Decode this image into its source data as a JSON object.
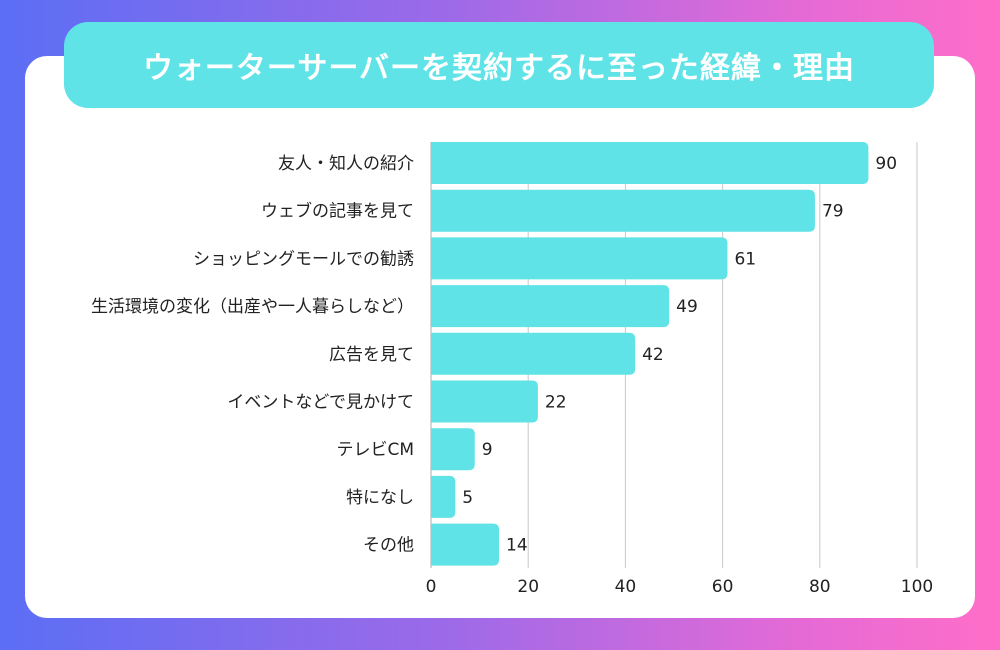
{
  "title": "ウォーターサーバーを契約するに至った経緯・理由",
  "colors": {
    "bar": "#5fe3e7",
    "banner": "#5fe3e7",
    "grid": "#c8c8c8",
    "text": "#222222"
  },
  "chart_data": {
    "type": "bar",
    "orientation": "horizontal",
    "title": "ウォーターサーバーを契約するに至った経緯・理由",
    "categories": [
      "友人・知人の紹介",
      "ウェブの記事を見て",
      "ショッピングモールでの勧誘",
      "生活環境の変化（出産や一人暮らしなど）",
      "広告を見て",
      "イベントなどで見かけて",
      "テレビCM",
      "特になし",
      "その他"
    ],
    "values": [
      90,
      79,
      61,
      49,
      42,
      22,
      9,
      5,
      14
    ],
    "xlim": [
      0,
      100
    ],
    "xticks": [
      0,
      20,
      40,
      60,
      80,
      100
    ],
    "grid": true,
    "xlabel": "",
    "ylabel": ""
  }
}
